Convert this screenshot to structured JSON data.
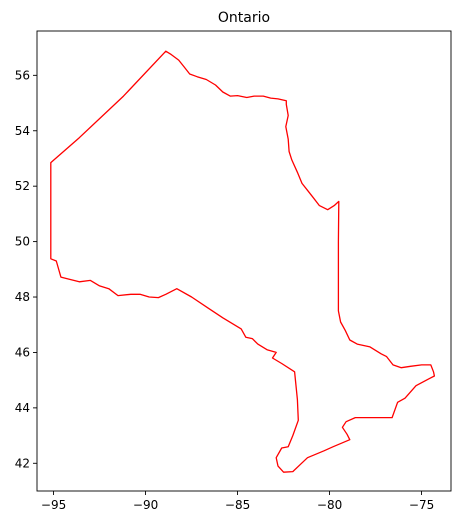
{
  "chart_data": {
    "type": "line",
    "title": "Ontario",
    "xlabel": "",
    "ylabel": "",
    "xlim": [
      -95.9,
      -73.4
    ],
    "ylim": [
      41.0,
      57.6
    ],
    "xticks": [
      -95,
      -90,
      -85,
      -80,
      -75
    ],
    "yticks": [
      42,
      44,
      46,
      48,
      50,
      52,
      54,
      56
    ],
    "xtick_labels": [
      "−95",
      "−90",
      "−85",
      "−80",
      "−75"
    ],
    "ytick_labels": [
      "42",
      "44",
      "46",
      "48",
      "50",
      "52",
      "54",
      "56"
    ],
    "grid": false,
    "legend": "none",
    "series": [
      {
        "color": "#ff0000",
        "points": [
          [
            -88.9,
            56.87
          ],
          [
            -88.6,
            56.75
          ],
          [
            -88.2,
            56.55
          ],
          [
            -87.9,
            56.3
          ],
          [
            -87.6,
            56.05
          ],
          [
            -87.2,
            55.95
          ],
          [
            -86.7,
            55.85
          ],
          [
            -86.2,
            55.65
          ],
          [
            -85.8,
            55.4
          ],
          [
            -85.4,
            55.25
          ],
          [
            -85.0,
            55.27
          ],
          [
            -84.5,
            55.2
          ],
          [
            -84.1,
            55.25
          ],
          [
            -83.6,
            55.25
          ],
          [
            -83.2,
            55.18
          ],
          [
            -82.8,
            55.15
          ],
          [
            -82.35,
            55.08
          ],
          [
            -82.35,
            54.95
          ],
          [
            -82.25,
            54.55
          ],
          [
            -82.38,
            54.15
          ],
          [
            -82.25,
            53.7
          ],
          [
            -82.2,
            53.25
          ],
          [
            -82.05,
            52.95
          ],
          [
            -81.75,
            52.5
          ],
          [
            -81.5,
            52.1
          ],
          [
            -81.2,
            51.85
          ],
          [
            -80.9,
            51.6
          ],
          [
            -80.55,
            51.3
          ],
          [
            -80.1,
            51.15
          ],
          [
            -79.75,
            51.3
          ],
          [
            -79.5,
            51.45
          ],
          [
            -79.52,
            50.0
          ],
          [
            -79.52,
            48.5
          ],
          [
            -79.52,
            47.5
          ],
          [
            -79.4,
            47.1
          ],
          [
            -79.15,
            46.8
          ],
          [
            -78.9,
            46.45
          ],
          [
            -78.5,
            46.3
          ],
          [
            -77.8,
            46.2
          ],
          [
            -77.2,
            45.95
          ],
          [
            -76.9,
            45.85
          ],
          [
            -76.55,
            45.55
          ],
          [
            -76.1,
            45.45
          ],
          [
            -75.6,
            45.5
          ],
          [
            -75.0,
            45.55
          ],
          [
            -74.5,
            45.55
          ],
          [
            -74.35,
            45.3
          ],
          [
            -74.3,
            45.15
          ],
          [
            -74.6,
            45.05
          ],
          [
            -75.3,
            44.8
          ],
          [
            -75.9,
            44.35
          ],
          [
            -76.3,
            44.2
          ],
          [
            -76.6,
            43.65
          ],
          [
            -77.3,
            43.65
          ],
          [
            -78.0,
            43.65
          ],
          [
            -78.6,
            43.65
          ],
          [
            -79.1,
            43.5
          ],
          [
            -79.3,
            43.3
          ],
          [
            -79.05,
            43.05
          ],
          [
            -78.9,
            42.85
          ],
          [
            -79.8,
            42.6
          ],
          [
            -80.3,
            42.45
          ],
          [
            -81.2,
            42.2
          ],
          [
            -81.6,
            41.95
          ],
          [
            -82.0,
            41.7
          ],
          [
            -82.5,
            41.68
          ],
          [
            -82.8,
            41.9
          ],
          [
            -82.9,
            42.2
          ],
          [
            -82.6,
            42.55
          ],
          [
            -82.25,
            42.6
          ],
          [
            -82.0,
            43.0
          ],
          [
            -81.7,
            43.55
          ],
          [
            -81.75,
            44.3
          ],
          [
            -81.9,
            45.3
          ],
          [
            -82.6,
            45.6
          ],
          [
            -83.1,
            45.8
          ],
          [
            -82.9,
            46.0
          ],
          [
            -83.4,
            46.1
          ],
          [
            -83.9,
            46.3
          ],
          [
            -84.2,
            46.5
          ],
          [
            -84.55,
            46.55
          ],
          [
            -84.8,
            46.85
          ],
          [
            -85.8,
            47.25
          ],
          [
            -86.6,
            47.6
          ],
          [
            -87.5,
            48.0
          ],
          [
            -88.3,
            48.3
          ],
          [
            -88.9,
            48.1
          ],
          [
            -89.3,
            47.98
          ],
          [
            -89.8,
            48.0
          ],
          [
            -90.3,
            48.1
          ],
          [
            -90.8,
            48.1
          ],
          [
            -91.5,
            48.05
          ],
          [
            -92.0,
            48.3
          ],
          [
            -92.5,
            48.4
          ],
          [
            -93.0,
            48.6
          ],
          [
            -93.6,
            48.55
          ],
          [
            -94.2,
            48.65
          ],
          [
            -94.6,
            48.72
          ],
          [
            -94.85,
            49.3
          ],
          [
            -95.15,
            49.38
          ],
          [
            -95.15,
            50.5
          ],
          [
            -95.15,
            52.85
          ],
          [
            -93.6,
            53.75
          ],
          [
            -91.2,
            55.25
          ],
          [
            -88.9,
            56.87
          ]
        ]
      }
    ]
  }
}
